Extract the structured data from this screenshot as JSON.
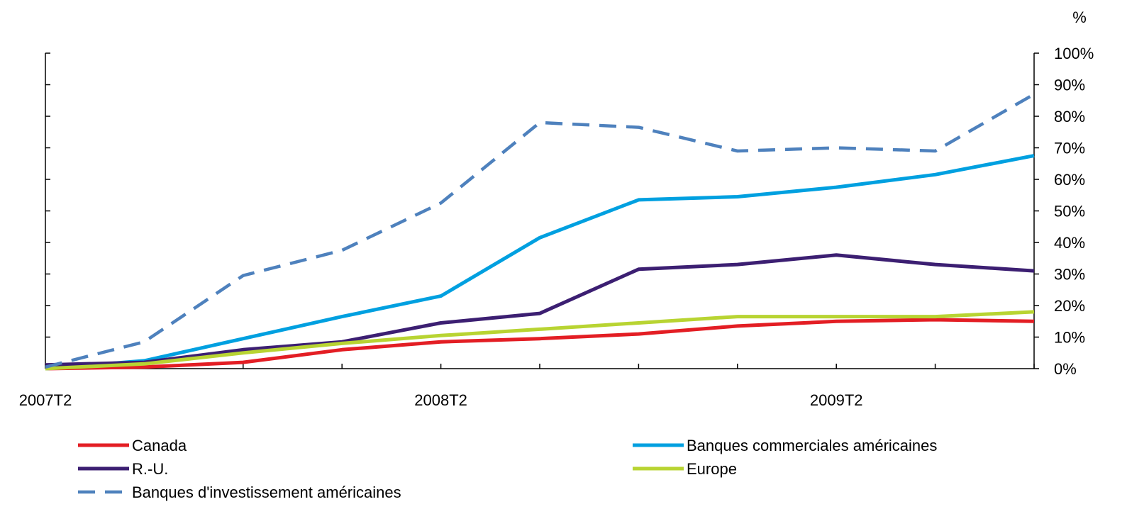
{
  "chart_data": {
    "type": "line",
    "y_unit_label": "%",
    "x": [
      "2007T2",
      "2007T3",
      "2007T4",
      "2008T1",
      "2008T2",
      "2008T3",
      "2008T4",
      "2009T1",
      "2009T2",
      "2009T3",
      "2009T4"
    ],
    "x_tick_labels": [
      "2007T2",
      "2008T2",
      "2009T2"
    ],
    "ylim": [
      0,
      100
    ],
    "y_ticks": [
      "0%",
      "10%",
      "20%",
      "30%",
      "40%",
      "50%",
      "60%",
      "70%",
      "80%",
      "90%",
      "100%"
    ],
    "y_tick_values": [
      0,
      10,
      20,
      30,
      40,
      50,
      60,
      70,
      80,
      90,
      100
    ],
    "y_axis_side": "right",
    "grid": false,
    "legend_position": "bottom",
    "series": [
      {
        "key": "canada",
        "name": "Canada",
        "color": "#e31e24",
        "dash": false,
        "values": [
          0,
          0.5,
          2,
          6,
          8.5,
          9.5,
          11,
          13.5,
          15,
          15.5,
          15
        ]
      },
      {
        "key": "us_commercial",
        "name": "Banques commerciales américaines",
        "color": "#00a0e0",
        "dash": false,
        "values": [
          0,
          2.5,
          9.5,
          16.5,
          23,
          41.5,
          53.5,
          54.5,
          57.5,
          61.5,
          67.5
        ]
      },
      {
        "key": "uk",
        "name": "R.-U.",
        "color": "#3c1f72",
        "dash": false,
        "values": [
          1.2,
          2,
          6,
          8.5,
          14.5,
          17.5,
          31.5,
          33,
          36,
          33,
          31
        ]
      },
      {
        "key": "europe",
        "name": "Europe",
        "color": "#b8d432",
        "dash": false,
        "values": [
          0,
          1.5,
          5,
          8,
          10.5,
          12.5,
          14.5,
          16.5,
          16.5,
          16.5,
          18
        ]
      },
      {
        "key": "us_investment",
        "name": "Banques d'investissement américaines",
        "color": "#4e81bd",
        "dash": true,
        "values": [
          0.5,
          8.5,
          29.5,
          37.5,
          52.5,
          78,
          76.5,
          69,
          70,
          69,
          87
        ]
      }
    ]
  }
}
